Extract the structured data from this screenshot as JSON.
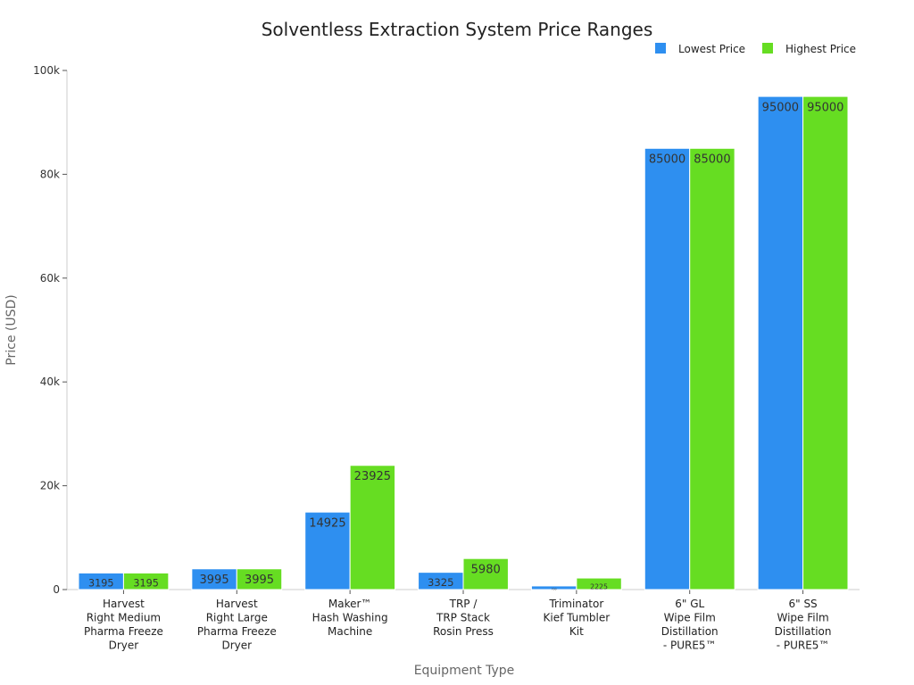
{
  "chart_data": {
    "type": "bar",
    "title": "Solventless Extraction System Price Ranges",
    "xlabel": "Equipment Type",
    "ylabel": "Price (USD)",
    "ylim": [
      0,
      100000
    ],
    "yticks": [
      "0",
      "20k",
      "40k",
      "60k",
      "80k",
      "100k"
    ],
    "ytick_values": [
      0,
      20000,
      40000,
      60000,
      80000,
      100000
    ],
    "legend_position": "top-right",
    "grid": false,
    "categories": [
      [
        "Harvest",
        "Right Medium",
        "Pharma Freeze",
        "Dryer"
      ],
      [
        "Harvest",
        "Right Large",
        "Pharma Freeze",
        "Dryer"
      ],
      [
        "Maker™",
        "Hash Washing",
        "Machine"
      ],
      [
        "TRP /",
        "TRP Stack",
        "Rosin Press"
      ],
      [
        "Triminator",
        "Kief Tumbler",
        "Kit"
      ],
      [
        "6\" GL",
        "Wipe Film",
        "Distillation",
        "- PURE5™"
      ],
      [
        "6\" SS",
        "Wipe Film",
        "Distillation",
        "- PURE5™"
      ]
    ],
    "series": [
      {
        "name": "Lowest Price",
        "color": "#2e8ff0",
        "values": [
          3195,
          3995,
          14925,
          3325,
          700,
          85000,
          95000
        ]
      },
      {
        "name": "Highest Price",
        "color": "#66dd22",
        "values": [
          3195,
          3995,
          23925,
          5980,
          2225,
          85000,
          95000
        ]
      }
    ]
  }
}
